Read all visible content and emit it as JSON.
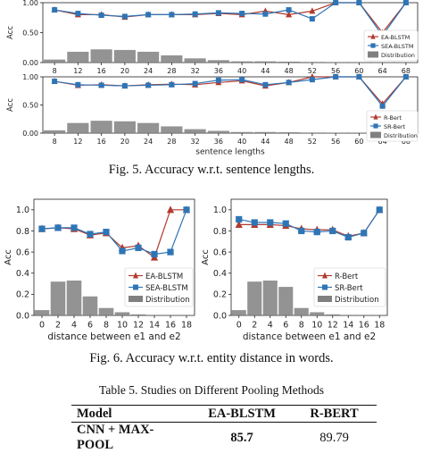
{
  "chart_data": [
    {
      "type": "line",
      "panel": "fig5-top",
      "ylabel": "Acc",
      "xlabel": "",
      "ylim": [
        0,
        1
      ],
      "yticks": [
        "0.00",
        "0.50",
        "1.00"
      ],
      "categories": [
        "8",
        "12",
        "16",
        "20",
        "24",
        "28",
        "32",
        "36",
        "40",
        "44",
        "48",
        "52",
        "56",
        "60",
        "64",
        "68"
      ],
      "series": [
        {
          "name": "EA-BLSTM",
          "type": "line",
          "color": "#b03a2e",
          "marker": "triangle",
          "values": [
            0.88,
            0.8,
            0.8,
            0.76,
            0.8,
            0.8,
            0.8,
            0.82,
            0.8,
            0.86,
            0.8,
            0.86,
            1.0,
            1.0,
            0.5,
            1.0
          ]
        },
        {
          "name": "SEA-BLSTM",
          "type": "line",
          "color": "#2e75b6",
          "marker": "square",
          "values": [
            0.88,
            0.82,
            0.79,
            0.77,
            0.8,
            0.8,
            0.81,
            0.83,
            0.82,
            0.81,
            0.88,
            0.73,
            1.0,
            1.0,
            0.45,
            1.0
          ]
        },
        {
          "name": "Distribution",
          "type": "bar",
          "color": "#808080",
          "values": [
            0.05,
            0.18,
            0.22,
            0.21,
            0.18,
            0.12,
            0.07,
            0.04,
            0.02,
            0.02,
            0.015,
            0.01,
            0.005,
            0.005,
            0.005,
            0.005
          ]
        }
      ],
      "legend": "bottom-right"
    },
    {
      "type": "line",
      "panel": "fig5-bottom",
      "ylabel": "Acc",
      "xlabel": "sentence lengths",
      "ylim": [
        0,
        1
      ],
      "yticks": [
        "0.00",
        "0.50",
        "1.00"
      ],
      "categories": [
        "8",
        "12",
        "16",
        "20",
        "24",
        "28",
        "32",
        "36",
        "40",
        "44",
        "48",
        "52",
        "56",
        "60",
        "64",
        "68"
      ],
      "series": [
        {
          "name": "R-Bert",
          "type": "line",
          "color": "#b03a2e",
          "marker": "triangle",
          "values": [
            0.92,
            0.85,
            0.86,
            0.84,
            0.86,
            0.87,
            0.86,
            0.9,
            0.93,
            0.84,
            0.9,
            1.0,
            1.0,
            1.0,
            0.52,
            1.0
          ]
        },
        {
          "name": "SR-Bert",
          "type": "line",
          "color": "#2e75b6",
          "marker": "square",
          "values": [
            0.92,
            0.86,
            0.85,
            0.84,
            0.85,
            0.86,
            0.88,
            0.94,
            0.95,
            0.86,
            0.9,
            0.95,
            1.0,
            1.0,
            0.48,
            1.0
          ]
        },
        {
          "name": "Distribution",
          "type": "bar",
          "color": "#808080",
          "values": [
            0.05,
            0.18,
            0.22,
            0.21,
            0.18,
            0.12,
            0.07,
            0.04,
            0.02,
            0.02,
            0.015,
            0.01,
            0.005,
            0.005,
            0.005,
            0.005
          ]
        }
      ],
      "legend": "bottom-right"
    },
    {
      "type": "line",
      "panel": "fig6-left",
      "ylabel": "Acc",
      "xlabel": "distance between e1 and e2",
      "ylim": [
        0,
        1.1
      ],
      "yticks": [
        "0.0",
        "0.2",
        "0.4",
        "0.6",
        "0.8",
        "1.0"
      ],
      "categories": [
        "0",
        "2",
        "4",
        "6",
        "8",
        "10",
        "12",
        "14",
        "16",
        "18"
      ],
      "series": [
        {
          "name": "EA-BLSTM",
          "type": "line",
          "color": "#b03a2e",
          "marker": "triangle",
          "values": [
            0.82,
            0.83,
            0.82,
            0.76,
            0.78,
            0.64,
            0.66,
            0.55,
            1.0,
            1.0
          ]
        },
        {
          "name": "SEA-BLSTM",
          "type": "line",
          "color": "#2e75b6",
          "marker": "square",
          "values": [
            0.82,
            0.83,
            0.83,
            0.77,
            0.79,
            0.61,
            0.64,
            0.58,
            0.6,
            1.0
          ]
        },
        {
          "name": "Distribution",
          "type": "bar",
          "color": "#808080",
          "values": [
            0.05,
            0.32,
            0.33,
            0.18,
            0.07,
            0.03,
            0.01,
            0.005,
            0.005,
            0.005
          ]
        }
      ],
      "legend": "center-right"
    },
    {
      "type": "line",
      "panel": "fig6-right",
      "ylabel": "Acc",
      "xlabel": "distance between e1 and e2",
      "ylim": [
        0,
        1.1
      ],
      "yticks": [
        "0.0",
        "0.2",
        "0.4",
        "0.6",
        "0.8",
        "1.0"
      ],
      "categories": [
        "0",
        "2",
        "4",
        "6",
        "8",
        "10",
        "12",
        "14",
        "16",
        "18"
      ],
      "series": [
        {
          "name": "R-Bert",
          "type": "line",
          "color": "#b03a2e",
          "marker": "triangle",
          "values": [
            0.86,
            0.86,
            0.86,
            0.85,
            0.82,
            0.81,
            0.81,
            0.75,
            0.78,
            1.0
          ]
        },
        {
          "name": "SR-Bert",
          "type": "line",
          "color": "#2e75b6",
          "marker": "square",
          "values": [
            0.91,
            0.88,
            0.88,
            0.87,
            0.8,
            0.79,
            0.8,
            0.74,
            0.78,
            1.0
          ]
        },
        {
          "name": "Distribution",
          "type": "bar",
          "color": "#808080",
          "values": [
            0.05,
            0.32,
            0.33,
            0.27,
            0.07,
            0.03,
            0.01,
            0.005,
            0.005,
            0.005
          ]
        }
      ],
      "legend": "center-right"
    }
  ],
  "captions": {
    "fig5": "Fig. 5.  Accuracy w.r.t. sentence lengths.",
    "fig6": "Fig. 6.  Accuracy w.r.t. entity distance in words.",
    "table5": "Table 5.  Studies on Different Pooling Methods"
  },
  "table": {
    "headers": [
      "Model",
      "EA-BLSTM",
      "R-BERT"
    ],
    "rows": [
      [
        "CNN + MAX-POOL",
        "85.7",
        "89.79"
      ]
    ]
  }
}
